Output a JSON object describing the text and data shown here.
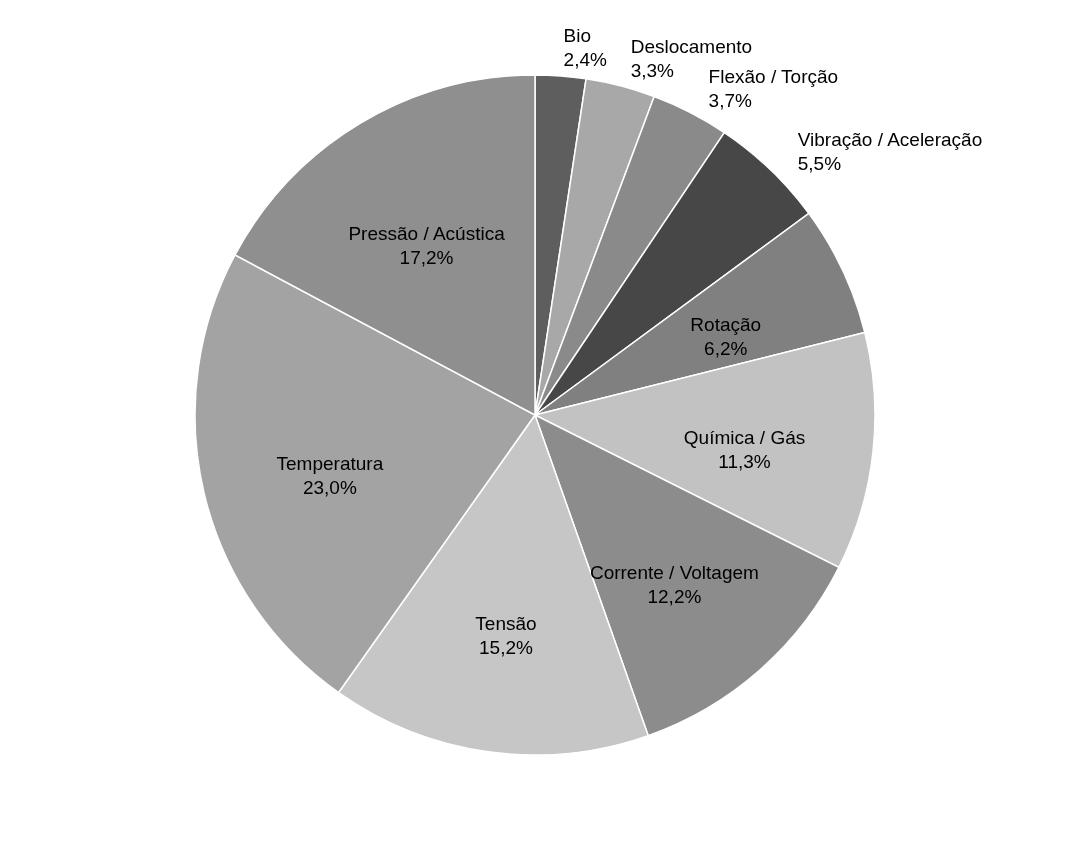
{
  "chart_data": {
    "type": "pie",
    "categories": [
      "Bio",
      "Deslocamento",
      "Flexão / Torção",
      "Vibração / Aceleração",
      "Rotação",
      "Química / Gás",
      "Corrente / Voltagem",
      "Tensão",
      "Temperatura",
      "Pressão / Acústica"
    ],
    "values": [
      2.4,
      3.3,
      3.7,
      5.5,
      6.2,
      11.3,
      12.2,
      15.2,
      23.0,
      17.2
    ],
    "value_labels": [
      "2,4%",
      "3,3%",
      "3,7%",
      "5,5%",
      "6,2%",
      "11,3%",
      "12,2%",
      "15,2%",
      "23,0%",
      "17,2%"
    ],
    "colors": [
      "#5e5e5e",
      "#a8a8a8",
      "#8a8a8a",
      "#474747",
      "#808080",
      "#c2c2c2",
      "#8c8c8c",
      "#c6c6c6",
      "#a3a3a3",
      "#8f8f8f"
    ],
    "legend": false
  }
}
